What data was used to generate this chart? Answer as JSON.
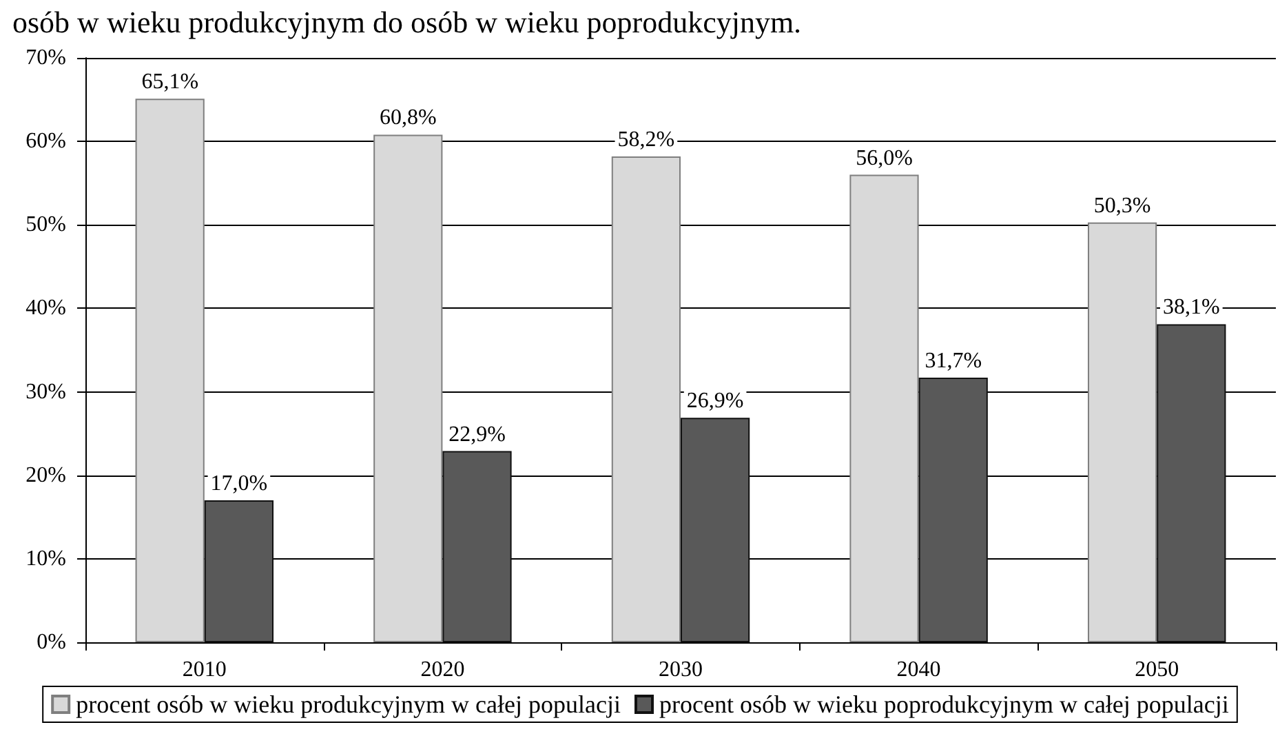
{
  "chart_data": {
    "type": "bar",
    "title": "osób w wieku produkcyjnym do osób w wieku poprodukcyjnym.",
    "categories": [
      "2010",
      "2020",
      "2030",
      "2040",
      "2050"
    ],
    "series": [
      {
        "name": "procent osób w wieku produkcyjnym w całej populacji",
        "color": "#d9d9d9",
        "values": [
          65.1,
          60.8,
          58.2,
          56.0,
          50.3
        ],
        "value_labels": [
          "65,1%",
          "60,8%",
          "58,2%",
          "56,0%",
          "50,3%"
        ]
      },
      {
        "name": "procent osób w wieku poprodukcyjnym w całej populacji",
        "color": "#595959",
        "values": [
          17.0,
          22.9,
          26.9,
          31.7,
          38.1
        ],
        "value_labels": [
          "17,0%",
          "22,9%",
          "26,9%",
          "31,7%",
          "38,1%"
        ]
      }
    ],
    "ylim": [
      0,
      70
    ],
    "yticks": [
      {
        "value": 0,
        "label": "0%"
      },
      {
        "value": 10,
        "label": "10%"
      },
      {
        "value": 20,
        "label": "20%"
      },
      {
        "value": 30,
        "label": "30%"
      },
      {
        "value": 40,
        "label": "40%"
      },
      {
        "value": 50,
        "label": "50%"
      },
      {
        "value": 60,
        "label": "60%"
      },
      {
        "value": 70,
        "label": "70%"
      }
    ],
    "grid": "y",
    "legend": "bottom"
  }
}
